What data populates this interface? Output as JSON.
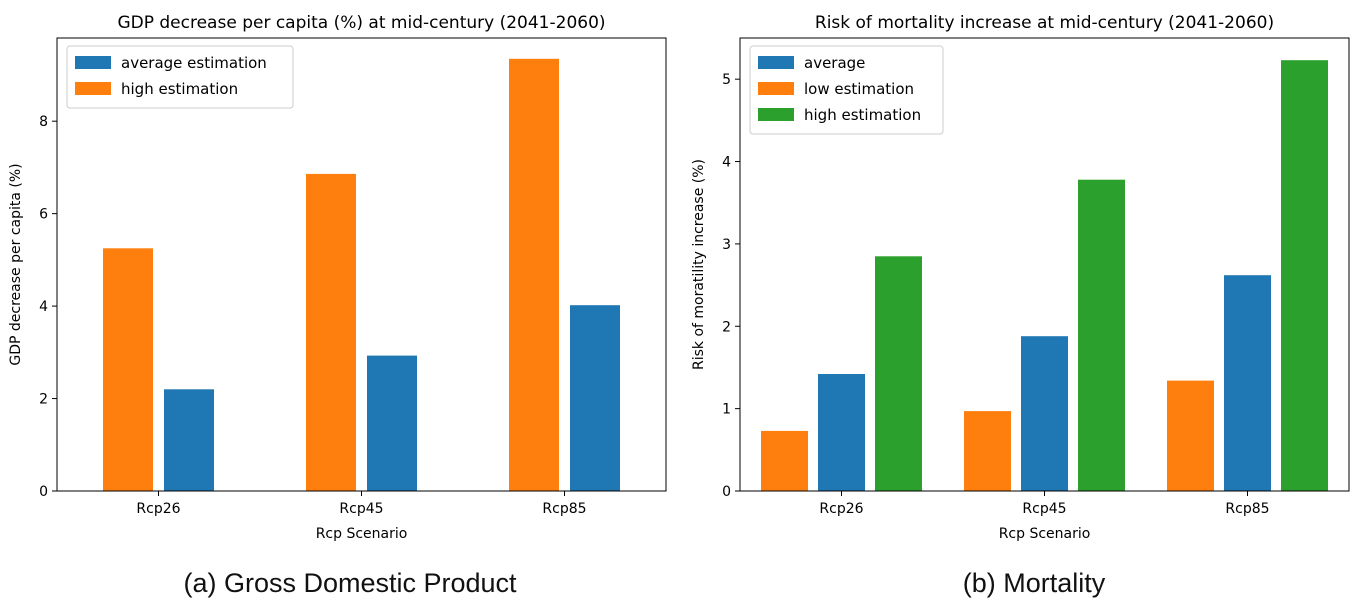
{
  "captions": {
    "a": "(a) Gross Domestic Product",
    "b": "(b) Mortality"
  },
  "chart_data": [
    {
      "type": "bar",
      "title": "GDP decrease per capita (%) at mid-century (2041-2060)",
      "xlabel": "Rcp Scenario",
      "ylabel": "GDP decrease per capita (%)",
      "categories": [
        "Rcp26",
        "Rcp45",
        "Rcp85"
      ],
      "ylim": [
        0,
        9.8
      ],
      "yticks": [
        0,
        2,
        4,
        6,
        8
      ],
      "legend_position": "top-left",
      "legend": [
        {
          "name": "average estimation",
          "color": "#1f77b4"
        },
        {
          "name": "high estimation",
          "color": "#ff7f0e"
        }
      ],
      "bar_order": [
        "high estimation",
        "average estimation"
      ],
      "series": [
        {
          "name": "average estimation",
          "color": "#1f77b4",
          "values": [
            2.2,
            2.93,
            4.02
          ]
        },
        {
          "name": "high estimation",
          "color": "#ff7f0e",
          "values": [
            5.25,
            6.86,
            9.35
          ]
        }
      ]
    },
    {
      "type": "bar",
      "title": "Risk of mortality increase at mid-century (2041-2060)",
      "xlabel": "Rcp Scenario",
      "ylabel": "Risk of moratility increase (%)",
      "categories": [
        "Rcp26",
        "Rcp45",
        "Rcp85"
      ],
      "ylim": [
        0,
        5.5
      ],
      "yticks": [
        0,
        1,
        2,
        3,
        4,
        5
      ],
      "legend_position": "top-left",
      "legend": [
        {
          "name": "average",
          "color": "#1f77b4"
        },
        {
          "name": "low estimation",
          "color": "#ff7f0e"
        },
        {
          "name": "high estimation",
          "color": "#2ca02c"
        }
      ],
      "bar_order": [
        "low estimation",
        "average",
        "high estimation"
      ],
      "series": [
        {
          "name": "average",
          "color": "#1f77b4",
          "values": [
            1.42,
            1.88,
            2.62
          ]
        },
        {
          "name": "low estimation",
          "color": "#ff7f0e",
          "values": [
            0.73,
            0.97,
            1.34
          ]
        },
        {
          "name": "high estimation",
          "color": "#2ca02c",
          "values": [
            2.85,
            3.78,
            5.23
          ]
        }
      ]
    }
  ]
}
